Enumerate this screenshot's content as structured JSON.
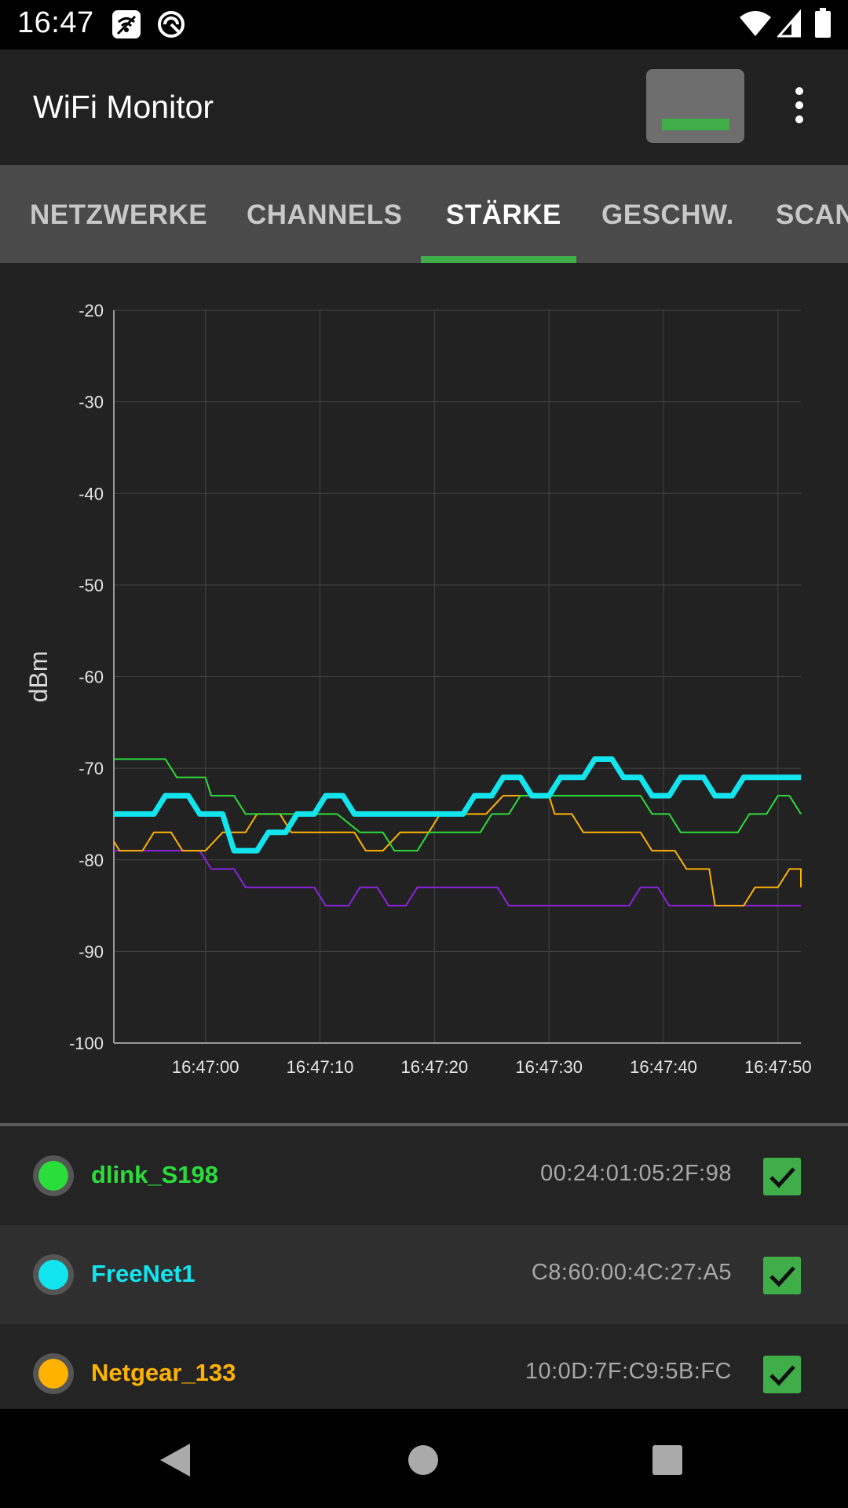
{
  "status_bar": {
    "time": "16:47",
    "icons": [
      "wifi-scan-icon",
      "sync-icon",
      "wifi-signal-icon",
      "cell-signal-icon",
      "battery-icon"
    ]
  },
  "app_bar": {
    "title": "WiFi Monitor",
    "icons": [
      "signal-level-icon",
      "overflow-menu-icon"
    ]
  },
  "tabs": [
    {
      "label": "NETZWERKE",
      "active": false
    },
    {
      "label": "CHANNELS",
      "active": false
    },
    {
      "label": "STÄRKE",
      "active": true
    },
    {
      "label": "GESCHW.",
      "active": false
    },
    {
      "label": "SCAN",
      "active": false
    }
  ],
  "chart_data": {
    "type": "line",
    "title": "",
    "xlabel": "",
    "ylabel": "dBm",
    "ylim": [
      -100,
      -20
    ],
    "yticks": [
      -20,
      -30,
      -40,
      -50,
      -60,
      -70,
      -80,
      -90,
      -100
    ],
    "xticks": [
      "16:47:00",
      "16:47:10",
      "16:47:20",
      "16:47:30",
      "16:47:40",
      "16:47:50"
    ],
    "xlim_seconds": [
      -8,
      52
    ],
    "grid": true,
    "series": [
      {
        "name": "dlink_S198",
        "color": "#2bdd3a",
        "width": 2,
        "points": [
          [
            -8,
            -69
          ],
          [
            -3.5,
            -69
          ],
          [
            -2.5,
            -71
          ],
          [
            0,
            -71
          ],
          [
            0.5,
            -73
          ],
          [
            2.5,
            -73
          ],
          [
            3.5,
            -75
          ],
          [
            9,
            -75
          ],
          [
            10,
            -75
          ],
          [
            11.5,
            -75
          ],
          [
            13.5,
            -77
          ],
          [
            15.5,
            -77
          ],
          [
            16.5,
            -79
          ],
          [
            18.5,
            -79
          ],
          [
            19.5,
            -77
          ],
          [
            24,
            -77
          ],
          [
            25,
            -75
          ],
          [
            26.5,
            -75
          ],
          [
            27.5,
            -73
          ],
          [
            38,
            -73
          ],
          [
            39,
            -75
          ],
          [
            40.5,
            -75
          ],
          [
            41.5,
            -77
          ],
          [
            46.5,
            -77
          ],
          [
            47.5,
            -75
          ],
          [
            49,
            -75
          ],
          [
            50,
            -73
          ],
          [
            51,
            -73
          ],
          [
            52,
            -75
          ]
        ]
      },
      {
        "name": "FreeNet1",
        "color": "#12e5ee",
        "width": 7,
        "points": [
          [
            -8,
            -75
          ],
          [
            -4.5,
            -75
          ],
          [
            -3.5,
            -73
          ],
          [
            -1.5,
            -73
          ],
          [
            -0.5,
            -75
          ],
          [
            1.5,
            -75
          ],
          [
            2.5,
            -79
          ],
          [
            4.5,
            -79
          ],
          [
            5.5,
            -77
          ],
          [
            7,
            -77
          ],
          [
            8,
            -75
          ],
          [
            9.5,
            -75
          ],
          [
            10.5,
            -73
          ],
          [
            12,
            -73
          ],
          [
            13,
            -75
          ],
          [
            22.5,
            -75
          ],
          [
            23.5,
            -73
          ],
          [
            25,
            -73
          ],
          [
            26,
            -71
          ],
          [
            27.5,
            -71
          ],
          [
            28.5,
            -73
          ],
          [
            30,
            -73
          ],
          [
            31,
            -71
          ],
          [
            33,
            -71
          ],
          [
            34,
            -69
          ],
          [
            35.5,
            -69
          ],
          [
            36.5,
            -71
          ],
          [
            38,
            -71
          ],
          [
            39,
            -73
          ],
          [
            40.5,
            -73
          ],
          [
            41.5,
            -71
          ],
          [
            43.5,
            -71
          ],
          [
            44.5,
            -73
          ],
          [
            46,
            -73
          ],
          [
            47,
            -71
          ],
          [
            52,
            -71
          ]
        ]
      },
      {
        "name": "Netgear_133",
        "color": "#ffb300",
        "width": 2,
        "points": [
          [
            -8,
            -78
          ],
          [
            -7.5,
            -79
          ],
          [
            -5.5,
            -79
          ],
          [
            -4.5,
            -77
          ],
          [
            -3,
            -77
          ],
          [
            -2,
            -79
          ],
          [
            0,
            -79
          ],
          [
            1.5,
            -77
          ],
          [
            3.5,
            -77
          ],
          [
            4.5,
            -75
          ],
          [
            6.5,
            -75
          ],
          [
            7.5,
            -77
          ],
          [
            13,
            -77
          ],
          [
            14,
            -79
          ],
          [
            15.5,
            -79
          ],
          [
            17,
            -77
          ],
          [
            19.5,
            -77
          ],
          [
            20.5,
            -75
          ],
          [
            24.5,
            -75
          ],
          [
            26,
            -73
          ],
          [
            30,
            -73
          ],
          [
            30.5,
            -75
          ],
          [
            32,
            -75
          ],
          [
            33,
            -77
          ],
          [
            38,
            -77
          ],
          [
            39,
            -79
          ],
          [
            41,
            -79
          ],
          [
            42,
            -81
          ],
          [
            44,
            -81
          ],
          [
            44.5,
            -85
          ],
          [
            47,
            -85
          ],
          [
            48,
            -83
          ],
          [
            50,
            -83
          ],
          [
            51,
            -81
          ],
          [
            52,
            -81
          ],
          [
            52,
            -83
          ]
        ]
      },
      {
        "name": "",
        "color": "#8b23e0",
        "width": 2,
        "points": [
          [
            -8,
            -79
          ],
          [
            -0.5,
            -79
          ],
          [
            0.5,
            -81
          ],
          [
            2.5,
            -81
          ],
          [
            3.5,
            -83
          ],
          [
            9.5,
            -83
          ],
          [
            10.5,
            -85
          ],
          [
            12.5,
            -85
          ],
          [
            13.5,
            -83
          ],
          [
            15,
            -83
          ],
          [
            16,
            -85
          ],
          [
            17.5,
            -85
          ],
          [
            18.5,
            -83
          ],
          [
            25.5,
            -83
          ],
          [
            26.5,
            -85
          ],
          [
            37,
            -85
          ],
          [
            38,
            -83
          ],
          [
            39.5,
            -83
          ],
          [
            40.5,
            -85
          ],
          [
            52,
            -85
          ]
        ]
      }
    ]
  },
  "networks": [
    {
      "ssid": "dlink_S198",
      "mac": "00:24:01:05:2F:98",
      "color": "#2bdd3a",
      "checked": true
    },
    {
      "ssid": "FreeNet1",
      "mac": "C8:60:00:4C:27:A5",
      "color": "#12e5ee",
      "checked": true
    },
    {
      "ssid": "Netgear_133",
      "mac": "10:0D:7F:C9:5B:FC",
      "color": "#ffb300",
      "checked": true
    }
  ],
  "nav_bar": {
    "icons": [
      "back-icon",
      "home-icon",
      "recents-icon"
    ]
  }
}
